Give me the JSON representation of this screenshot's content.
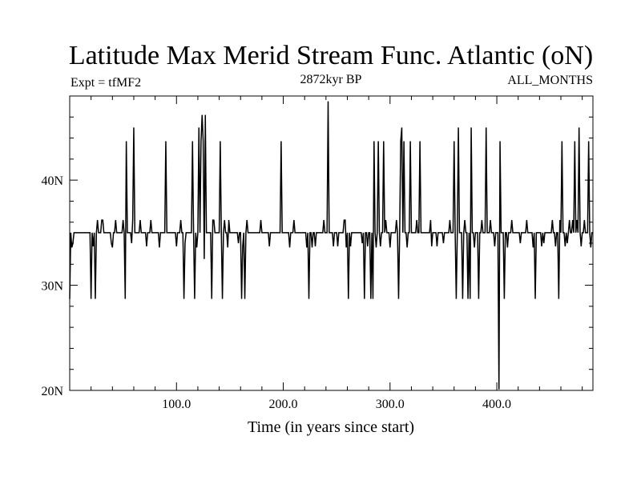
{
  "chart_data": {
    "type": "line",
    "title": "Latitude Max Merid Stream Func. Atlantic (oN)",
    "subtitle_left": "Expt = tfMF2",
    "subtitle_center": "2872kyr BP",
    "subtitle_right": "ALL_MONTHS",
    "xlabel": "Time (in years since start)",
    "ylabel": "",
    "xlim": [
      0,
      490
    ],
    "ylim": [
      20,
      48
    ],
    "x_ticks": [
      100,
      200,
      300,
      400
    ],
    "x_tick_labels": [
      "100.0",
      "200.0",
      "300.0",
      "400.0"
    ],
    "y_ticks": [
      20,
      30,
      40
    ],
    "y_tick_labels": [
      "20N",
      "30N",
      "40N"
    ],
    "x_minor_step": 20,
    "y_minor_step": 2,
    "grid": false,
    "baseline": 35,
    "excursions": [
      [
        0,
        28.7
      ],
      [
        2,
        33.6
      ],
      [
        3,
        34.0
      ],
      [
        20,
        28.7
      ],
      [
        22,
        33.7
      ],
      [
        24,
        28.7
      ],
      [
        26,
        36.2
      ],
      [
        30,
        36.2
      ],
      [
        31,
        36.2
      ],
      [
        39,
        34.0
      ],
      [
        40,
        33.6
      ],
      [
        43,
        36.2
      ],
      [
        50,
        36.2
      ],
      [
        52,
        28.7
      ],
      [
        53,
        43.7
      ],
      [
        58,
        34.0
      ],
      [
        59,
        36.2
      ],
      [
        60,
        45.0
      ],
      [
        66,
        36.2
      ],
      [
        72,
        33.7
      ],
      [
        76,
        36.2
      ],
      [
        84,
        33.6
      ],
      [
        90,
        43.7
      ],
      [
        100,
        33.7
      ],
      [
        104,
        36.2
      ],
      [
        107,
        28.7
      ],
      [
        108,
        34.0
      ],
      [
        115,
        43.7
      ],
      [
        117,
        28.7
      ],
      [
        119,
        33.6
      ],
      [
        121,
        45.0
      ],
      [
        123,
        43.7
      ],
      [
        124,
        46.2
      ],
      [
        125,
        43.7
      ],
      [
        126,
        32.5
      ],
      [
        127,
        46.2
      ],
      [
        133,
        28.7
      ],
      [
        134,
        36.2
      ],
      [
        135,
        36.2
      ],
      [
        141,
        43.7
      ],
      [
        143,
        28.7
      ],
      [
        145,
        36.2
      ],
      [
        148,
        33.6
      ],
      [
        149,
        36.2
      ],
      [
        158,
        34.0
      ],
      [
        161,
        28.7
      ],
      [
        162,
        33.7
      ],
      [
        164,
        28.7
      ],
      [
        166,
        36.2
      ],
      [
        179,
        36.2
      ],
      [
        187,
        33.7
      ],
      [
        198,
        43.7
      ],
      [
        206,
        33.6
      ],
      [
        210,
        36.2
      ],
      [
        222,
        33.6
      ],
      [
        224,
        28.7
      ],
      [
        227,
        33.6
      ],
      [
        230,
        33.7
      ],
      [
        238,
        36.2
      ],
      [
        242,
        47.5
      ],
      [
        247,
        33.7
      ],
      [
        251,
        33.7
      ],
      [
        257,
        36.2
      ],
      [
        258,
        36.2
      ],
      [
        259,
        33.6
      ],
      [
        261,
        28.7
      ],
      [
        263,
        33.7
      ],
      [
        274,
        34.0
      ],
      [
        276,
        28.7
      ],
      [
        279,
        33.7
      ],
      [
        282,
        28.7
      ],
      [
        284,
        28.7
      ],
      [
        285,
        43.7
      ],
      [
        287,
        33.6
      ],
      [
        289,
        43.7
      ],
      [
        291,
        33.7
      ],
      [
        294,
        43.7
      ],
      [
        296,
        36.2
      ],
      [
        300,
        33.6
      ],
      [
        306,
        36.2
      ],
      [
        308,
        28.7
      ],
      [
        310,
        43.7
      ],
      [
        311,
        45.0
      ],
      [
        313,
        43.7
      ],
      [
        316,
        33.6
      ],
      [
        319,
        43.7
      ],
      [
        325,
        36.2
      ],
      [
        328,
        43.7
      ],
      [
        338,
        36.2
      ],
      [
        339,
        33.7
      ],
      [
        344,
        33.7
      ],
      [
        350,
        34.0
      ],
      [
        356,
        36.2
      ],
      [
        360,
        43.7
      ],
      [
        362,
        28.7
      ],
      [
        364,
        45.0
      ],
      [
        368,
        28.7
      ],
      [
        370,
        36.2
      ],
      [
        373,
        28.7
      ],
      [
        375,
        28.7
      ],
      [
        376,
        45.0
      ],
      [
        379,
        33.6
      ],
      [
        383,
        28.7
      ],
      [
        386,
        36.2
      ],
      [
        390,
        45.0
      ],
      [
        394,
        36.2
      ],
      [
        398,
        33.7
      ],
      [
        402,
        20.1
      ],
      [
        403,
        43.7
      ],
      [
        407,
        28.7
      ],
      [
        410,
        33.6
      ],
      [
        414,
        36.2
      ],
      [
        422,
        34.0
      ],
      [
        428,
        36.2
      ],
      [
        434,
        33.6
      ],
      [
        436,
        28.7
      ],
      [
        442,
        33.7
      ],
      [
        444,
        34.0
      ],
      [
        452,
        36.2
      ],
      [
        455,
        33.7
      ],
      [
        458,
        28.7
      ],
      [
        459,
        36.2
      ],
      [
        461,
        43.7
      ],
      [
        464,
        33.7
      ],
      [
        466,
        34.0
      ],
      [
        468,
        36.2
      ],
      [
        471,
        36.2
      ],
      [
        473,
        43.7
      ],
      [
        475,
        36.2
      ],
      [
        477,
        45.0
      ],
      [
        479,
        33.7
      ],
      [
        482,
        36.2
      ],
      [
        486,
        43.7
      ],
      [
        488,
        33.6
      ]
    ],
    "line_color": "#000000"
  }
}
